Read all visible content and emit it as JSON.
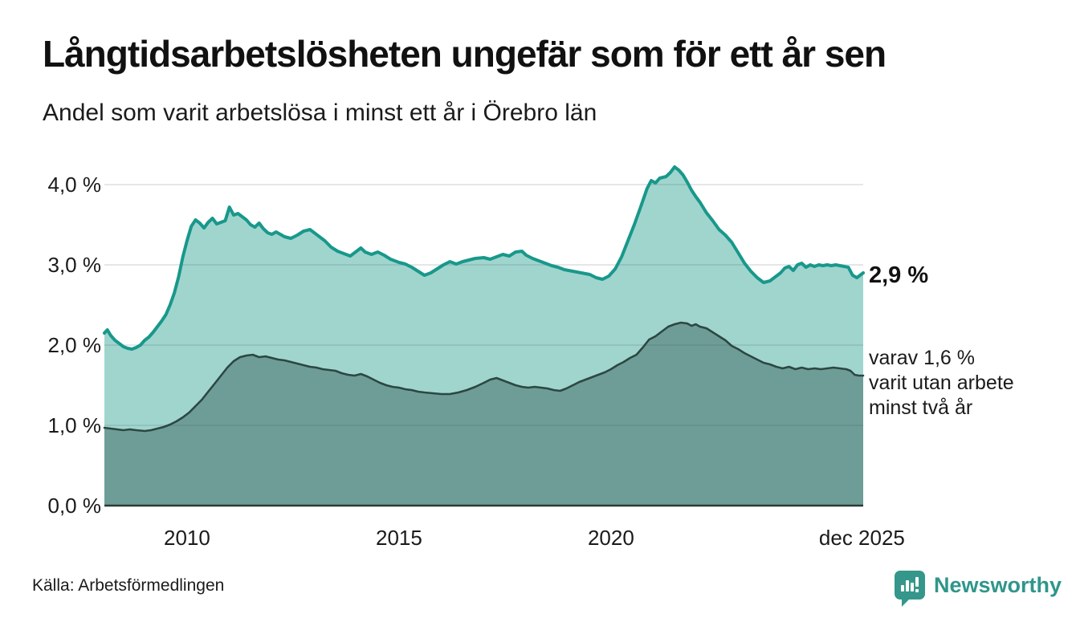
{
  "header": {
    "title": "Långtidsarbetslösheten ungefär som för ett år sen",
    "subtitle": "Andel som varit arbetslösa i minst ett år i Örebro län"
  },
  "annotations": {
    "latest_total": "2,9 %",
    "note_lines": [
      "varav 1,6 %",
      "varit utan arbete",
      "minst två år"
    ]
  },
  "footer": {
    "source": "Källa: Arbetsförmedlingen",
    "brand_name": "Newsworthy"
  },
  "colors": {
    "series1_line": "#18988b",
    "series1_fill": "#a0d5ce",
    "series2_line": "#2c4742",
    "series2_fill": "#6e9d97",
    "gridline": "rgba(70,75,95,0.14)",
    "axis": "#2b3a37",
    "brand_teal": "#35978b"
  },
  "chart_data": {
    "type": "area",
    "title": "Långtidsarbetslösheten ungefär som för ett år sen",
    "subtitle": "Andel som varit arbetslösa i minst ett år i Örebro län",
    "ylabel": "",
    "xlabel": "",
    "ylim": [
      0,
      4.25
    ],
    "x_range": [
      2008.05,
      2025.95
    ],
    "grid": true,
    "legend_position": "none",
    "yticks": [
      {
        "value": 0,
        "label": "0,0 %"
      },
      {
        "value": 1,
        "label": "1,0 %"
      },
      {
        "value": 2,
        "label": "2,0 %"
      },
      {
        "value": 3,
        "label": "3,0 %"
      },
      {
        "value": 4,
        "label": "4,0 %"
      }
    ],
    "xticks": [
      {
        "x": 2010,
        "label": "2010"
      },
      {
        "x": 2015,
        "label": "2015"
      },
      {
        "x": 2020,
        "label": "2020"
      },
      {
        "x": 2025.92,
        "label": "dec 2025"
      }
    ],
    "series": [
      {
        "name": "Andel som varit arbetslösa i minst ett år",
        "last_value_label": "2,9 %",
        "line_color": "#18988b",
        "fill_color": "#a0d5ce",
        "points": [
          [
            2008.05,
            2.15
          ],
          [
            2008.12,
            2.19
          ],
          [
            2008.2,
            2.12
          ],
          [
            2008.3,
            2.06
          ],
          [
            2008.4,
            2.02
          ],
          [
            2008.5,
            1.98
          ],
          [
            2008.6,
            1.96
          ],
          [
            2008.7,
            1.95
          ],
          [
            2008.8,
            1.97
          ],
          [
            2008.9,
            2.0
          ],
          [
            2009.0,
            2.06
          ],
          [
            2009.1,
            2.1
          ],
          [
            2009.2,
            2.16
          ],
          [
            2009.3,
            2.23
          ],
          [
            2009.4,
            2.3
          ],
          [
            2009.5,
            2.38
          ],
          [
            2009.6,
            2.5
          ],
          [
            2009.7,
            2.65
          ],
          [
            2009.8,
            2.85
          ],
          [
            2009.9,
            3.1
          ],
          [
            2010.0,
            3.3
          ],
          [
            2010.1,
            3.48
          ],
          [
            2010.2,
            3.56
          ],
          [
            2010.3,
            3.52
          ],
          [
            2010.4,
            3.46
          ],
          [
            2010.5,
            3.53
          ],
          [
            2010.6,
            3.58
          ],
          [
            2010.7,
            3.51
          ],
          [
            2010.8,
            3.53
          ],
          [
            2010.9,
            3.55
          ],
          [
            2011.0,
            3.72
          ],
          [
            2011.1,
            3.62
          ],
          [
            2011.2,
            3.64
          ],
          [
            2011.3,
            3.6
          ],
          [
            2011.4,
            3.56
          ],
          [
            2011.5,
            3.5
          ],
          [
            2011.6,
            3.47
          ],
          [
            2011.7,
            3.52
          ],
          [
            2011.8,
            3.45
          ],
          [
            2011.9,
            3.4
          ],
          [
            2012.0,
            3.38
          ],
          [
            2012.1,
            3.41
          ],
          [
            2012.2,
            3.38
          ],
          [
            2012.3,
            3.35
          ],
          [
            2012.45,
            3.33
          ],
          [
            2012.6,
            3.37
          ],
          [
            2012.75,
            3.42
          ],
          [
            2012.9,
            3.44
          ],
          [
            2013.0,
            3.4
          ],
          [
            2013.1,
            3.36
          ],
          [
            2013.25,
            3.3
          ],
          [
            2013.4,
            3.22
          ],
          [
            2013.55,
            3.17
          ],
          [
            2013.7,
            3.14
          ],
          [
            2013.85,
            3.11
          ],
          [
            2014.0,
            3.17
          ],
          [
            2014.1,
            3.21
          ],
          [
            2014.2,
            3.16
          ],
          [
            2014.35,
            3.13
          ],
          [
            2014.5,
            3.16
          ],
          [
            2014.65,
            3.12
          ],
          [
            2014.8,
            3.07
          ],
          [
            2015.0,
            3.03
          ],
          [
            2015.15,
            3.01
          ],
          [
            2015.3,
            2.97
          ],
          [
            2015.45,
            2.92
          ],
          [
            2015.6,
            2.87
          ],
          [
            2015.75,
            2.9
          ],
          [
            2015.9,
            2.95
          ],
          [
            2016.05,
            3.0
          ],
          [
            2016.2,
            3.04
          ],
          [
            2016.35,
            3.01
          ],
          [
            2016.5,
            3.04
          ],
          [
            2016.65,
            3.06
          ],
          [
            2016.8,
            3.08
          ],
          [
            2017.0,
            3.09
          ],
          [
            2017.15,
            3.07
          ],
          [
            2017.3,
            3.1
          ],
          [
            2017.45,
            3.13
          ],
          [
            2017.6,
            3.11
          ],
          [
            2017.75,
            3.16
          ],
          [
            2017.9,
            3.17
          ],
          [
            2018.0,
            3.12
          ],
          [
            2018.15,
            3.08
          ],
          [
            2018.3,
            3.05
          ],
          [
            2018.45,
            3.02
          ],
          [
            2018.6,
            2.99
          ],
          [
            2018.75,
            2.97
          ],
          [
            2018.9,
            2.94
          ],
          [
            2019.1,
            2.92
          ],
          [
            2019.3,
            2.9
          ],
          [
            2019.5,
            2.88
          ],
          [
            2019.65,
            2.84
          ],
          [
            2019.8,
            2.82
          ],
          [
            2019.95,
            2.86
          ],
          [
            2020.1,
            2.95
          ],
          [
            2020.25,
            3.1
          ],
          [
            2020.4,
            3.3
          ],
          [
            2020.55,
            3.5
          ],
          [
            2020.7,
            3.72
          ],
          [
            2020.85,
            3.95
          ],
          [
            2020.95,
            4.05
          ],
          [
            2021.05,
            4.02
          ],
          [
            2021.15,
            4.08
          ],
          [
            2021.3,
            4.1
          ],
          [
            2021.4,
            4.15
          ],
          [
            2021.5,
            4.22
          ],
          [
            2021.6,
            4.18
          ],
          [
            2021.7,
            4.12
          ],
          [
            2021.8,
            4.03
          ],
          [
            2021.9,
            3.93
          ],
          [
            2022.0,
            3.85
          ],
          [
            2022.1,
            3.78
          ],
          [
            2022.25,
            3.65
          ],
          [
            2022.4,
            3.55
          ],
          [
            2022.55,
            3.44
          ],
          [
            2022.7,
            3.37
          ],
          [
            2022.85,
            3.28
          ],
          [
            2023.0,
            3.15
          ],
          [
            2023.15,
            3.02
          ],
          [
            2023.3,
            2.92
          ],
          [
            2023.45,
            2.84
          ],
          [
            2023.6,
            2.78
          ],
          [
            2023.75,
            2.8
          ],
          [
            2023.9,
            2.86
          ],
          [
            2024.0,
            2.9
          ],
          [
            2024.1,
            2.96
          ],
          [
            2024.2,
            2.98
          ],
          [
            2024.3,
            2.93
          ],
          [
            2024.4,
            3.0
          ],
          [
            2024.5,
            3.02
          ],
          [
            2024.6,
            2.97
          ],
          [
            2024.7,
            3.0
          ],
          [
            2024.8,
            2.98
          ],
          [
            2024.9,
            3.0
          ],
          [
            2025.0,
            2.99
          ],
          [
            2025.1,
            3.0
          ],
          [
            2025.2,
            2.99
          ],
          [
            2025.3,
            3.0
          ],
          [
            2025.4,
            2.99
          ],
          [
            2025.5,
            2.98
          ],
          [
            2025.6,
            2.97
          ],
          [
            2025.7,
            2.87
          ],
          [
            2025.8,
            2.84
          ],
          [
            2025.95,
            2.9
          ]
        ]
      },
      {
        "name": "varav varit utan arbete minst två år",
        "last_value_label": "1,6 %",
        "line_color": "#2c4742",
        "fill_color": "#6e9d97",
        "points": [
          [
            2008.05,
            0.97
          ],
          [
            2008.2,
            0.96
          ],
          [
            2008.35,
            0.95
          ],
          [
            2008.5,
            0.94
          ],
          [
            2008.65,
            0.95
          ],
          [
            2008.8,
            0.94
          ],
          [
            2009.0,
            0.93
          ],
          [
            2009.15,
            0.94
          ],
          [
            2009.3,
            0.96
          ],
          [
            2009.45,
            0.98
          ],
          [
            2009.6,
            1.01
          ],
          [
            2009.75,
            1.05
          ],
          [
            2009.9,
            1.1
          ],
          [
            2010.05,
            1.16
          ],
          [
            2010.2,
            1.24
          ],
          [
            2010.35,
            1.32
          ],
          [
            2010.5,
            1.42
          ],
          [
            2010.65,
            1.52
          ],
          [
            2010.8,
            1.62
          ],
          [
            2010.95,
            1.72
          ],
          [
            2011.1,
            1.8
          ],
          [
            2011.25,
            1.85
          ],
          [
            2011.4,
            1.87
          ],
          [
            2011.55,
            1.88
          ],
          [
            2011.7,
            1.85
          ],
          [
            2011.85,
            1.86
          ],
          [
            2012.0,
            1.84
          ],
          [
            2012.15,
            1.82
          ],
          [
            2012.3,
            1.81
          ],
          [
            2012.45,
            1.79
          ],
          [
            2012.6,
            1.77
          ],
          [
            2012.75,
            1.75
          ],
          [
            2012.9,
            1.73
          ],
          [
            2013.05,
            1.72
          ],
          [
            2013.2,
            1.7
          ],
          [
            2013.35,
            1.69
          ],
          [
            2013.5,
            1.68
          ],
          [
            2013.65,
            1.65
          ],
          [
            2013.8,
            1.63
          ],
          [
            2013.95,
            1.62
          ],
          [
            2014.1,
            1.64
          ],
          [
            2014.25,
            1.61
          ],
          [
            2014.4,
            1.57
          ],
          [
            2014.55,
            1.53
          ],
          [
            2014.7,
            1.5
          ],
          [
            2014.85,
            1.48
          ],
          [
            2015.0,
            1.47
          ],
          [
            2015.15,
            1.45
          ],
          [
            2015.3,
            1.44
          ],
          [
            2015.45,
            1.42
          ],
          [
            2015.6,
            1.41
          ],
          [
            2015.8,
            1.4
          ],
          [
            2016.0,
            1.39
          ],
          [
            2016.2,
            1.39
          ],
          [
            2016.4,
            1.41
          ],
          [
            2016.6,
            1.44
          ],
          [
            2016.8,
            1.48
          ],
          [
            2017.0,
            1.53
          ],
          [
            2017.15,
            1.57
          ],
          [
            2017.3,
            1.59
          ],
          [
            2017.45,
            1.56
          ],
          [
            2017.6,
            1.53
          ],
          [
            2017.75,
            1.5
          ],
          [
            2017.9,
            1.48
          ],
          [
            2018.05,
            1.47
          ],
          [
            2018.2,
            1.48
          ],
          [
            2018.35,
            1.47
          ],
          [
            2018.5,
            1.46
          ],
          [
            2018.65,
            1.44
          ],
          [
            2018.8,
            1.43
          ],
          [
            2018.95,
            1.46
          ],
          [
            2019.1,
            1.5
          ],
          [
            2019.25,
            1.54
          ],
          [
            2019.4,
            1.57
          ],
          [
            2019.55,
            1.6
          ],
          [
            2019.7,
            1.63
          ],
          [
            2019.85,
            1.66
          ],
          [
            2020.0,
            1.7
          ],
          [
            2020.15,
            1.75
          ],
          [
            2020.3,
            1.79
          ],
          [
            2020.45,
            1.84
          ],
          [
            2020.6,
            1.88
          ],
          [
            2020.75,
            1.97
          ],
          [
            2020.9,
            2.07
          ],
          [
            2021.05,
            2.11
          ],
          [
            2021.2,
            2.17
          ],
          [
            2021.35,
            2.23
          ],
          [
            2021.5,
            2.26
          ],
          [
            2021.65,
            2.28
          ],
          [
            2021.8,
            2.27
          ],
          [
            2021.9,
            2.24
          ],
          [
            2022.0,
            2.26
          ],
          [
            2022.1,
            2.23
          ],
          [
            2022.25,
            2.21
          ],
          [
            2022.4,
            2.16
          ],
          [
            2022.55,
            2.11
          ],
          [
            2022.7,
            2.06
          ],
          [
            2022.85,
            1.99
          ],
          [
            2023.0,
            1.95
          ],
          [
            2023.15,
            1.9
          ],
          [
            2023.3,
            1.86
          ],
          [
            2023.45,
            1.82
          ],
          [
            2023.6,
            1.78
          ],
          [
            2023.75,
            1.76
          ],
          [
            2023.9,
            1.73
          ],
          [
            2024.05,
            1.71
          ],
          [
            2024.2,
            1.73
          ],
          [
            2024.35,
            1.7
          ],
          [
            2024.5,
            1.72
          ],
          [
            2024.65,
            1.7
          ],
          [
            2024.8,
            1.71
          ],
          [
            2024.95,
            1.7
          ],
          [
            2025.1,
            1.71
          ],
          [
            2025.25,
            1.72
          ],
          [
            2025.4,
            1.71
          ],
          [
            2025.55,
            1.7
          ],
          [
            2025.65,
            1.68
          ],
          [
            2025.75,
            1.63
          ],
          [
            2025.85,
            1.62
          ],
          [
            2025.95,
            1.62
          ]
        ]
      }
    ]
  }
}
